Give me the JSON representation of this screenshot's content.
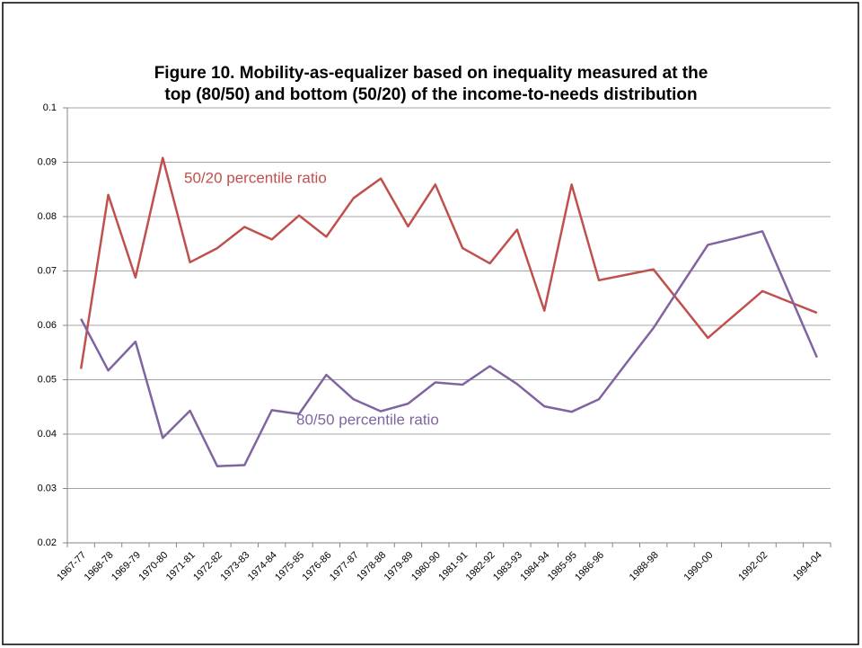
{
  "chart_data": {
    "type": "line",
    "title": [
      "Figure 10.  Mobility-as-equalizer based on inequality measured at the",
      "top (80/50) and bottom (50/20) of the income-to-needs distribution"
    ],
    "categories": [
      "1967-77",
      "1968-78",
      "1969-79",
      "1970-80",
      "1971-81",
      "1972-82",
      "1973-83",
      "1974-84",
      "1975-85",
      "1976-86",
      "1977-87",
      "1978-88",
      "1979-89",
      "1980-90",
      "1981-91",
      "1982-92",
      "1983-93",
      "1984-94",
      "1985-95",
      "1986-96",
      null,
      "1988-98",
      null,
      "1990-00",
      null,
      "1992-02",
      null,
      "1994-04"
    ],
    "series": [
      {
        "name": "50/20 percentile ratio",
        "color": "#c0504d",
        "values": [
          0.052,
          0.084,
          0.0688,
          0.0908,
          0.0716,
          0.0742,
          0.0781,
          0.0758,
          0.0802,
          0.0763,
          0.0834,
          0.087,
          0.0782,
          0.0859,
          0.0742,
          0.0714,
          0.0776,
          0.0627,
          0.0859,
          0.0683,
          0.0693,
          0.0703,
          0.064,
          0.0577,
          0.062,
          0.0663,
          0.0643,
          0.0623
        ]
      },
      {
        "name": "80/50 percentile ratio",
        "color": "#8064a2",
        "values": [
          0.0612,
          0.0517,
          0.057,
          0.0393,
          0.0443,
          0.0341,
          0.0343,
          0.0444,
          0.0437,
          0.0509,
          0.0464,
          0.0442,
          0.0456,
          0.0495,
          0.0491,
          0.0525,
          0.0492,
          0.0451,
          0.0441,
          0.0464,
          0.053,
          0.0595,
          0.0672,
          0.0748,
          0.076,
          0.0773,
          0.0657,
          0.0541
        ]
      }
    ],
    "ylim": [
      0.02,
      0.1
    ],
    "yticks": [
      0.02,
      0.03,
      0.04,
      0.05,
      0.06,
      0.07,
      0.08,
      0.09,
      0.1
    ],
    "grid": true
  }
}
